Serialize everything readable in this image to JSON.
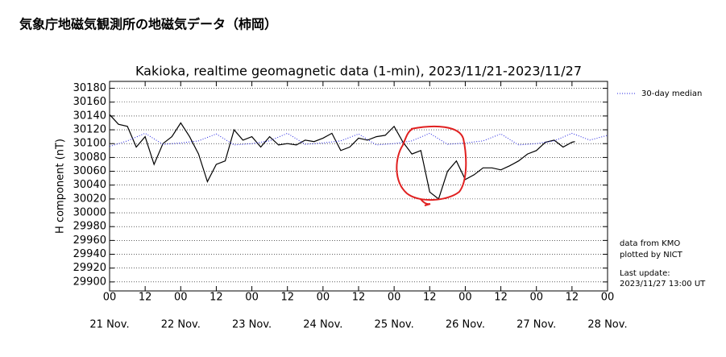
{
  "header": {
    "title": "気象庁地磁気観測所の地磁気データ（柿岡）"
  },
  "chart_data": {
    "type": "line",
    "title": "Kakioka, realtime geomagnetic data (1-min), 2023/11/21-2023/11/27",
    "y_label": "H component (nT)",
    "xlim": [
      0,
      168
    ],
    "xticks": [
      {
        "value": 0,
        "label": "00"
      },
      12,
      {
        "value": 24,
        "label": "00"
      },
      12,
      {
        "value": 48,
        "label": "00"
      },
      12,
      {
        "value": 72,
        "label": "00"
      },
      12,
      {
        "value": 96,
        "label": "00"
      },
      12,
      {
        "value": 120,
        "label": "00"
      },
      12,
      {
        "value": 144,
        "label": "00"
      },
      12,
      {
        "value": 168,
        "label": "00"
      }
    ],
    "day_labels": [
      {
        "value": 0,
        "label": "21 Nov."
      },
      {
        "value": 24,
        "label": "22 Nov."
      },
      {
        "value": 48,
        "label": "23 Nov."
      },
      {
        "value": 72,
        "label": "24 Nov."
      },
      {
        "value": 96,
        "label": "25 Nov."
      },
      {
        "value": 120,
        "label": "26 Nov."
      },
      {
        "value": 144,
        "label": "27 Nov."
      },
      {
        "value": 168,
        "label": "28 Nov."
      }
    ],
    "ylim": [
      29887,
      30190
    ],
    "yticks": [
      29900,
      29920,
      29940,
      29960,
      29980,
      30000,
      30020,
      30040,
      30060,
      30080,
      30100,
      30120,
      30140,
      30160,
      30180
    ],
    "grid": true,
    "series": [
      {
        "color": "#000000",
        "style": "solid",
        "x": [
          0,
          3,
          6,
          9,
          12,
          15,
          18,
          21,
          24,
          27,
          30,
          33,
          36,
          39,
          42,
          45,
          48,
          51,
          54,
          57,
          60,
          63,
          66,
          69,
          72,
          75,
          78,
          81,
          84,
          87,
          90,
          93,
          96,
          99,
          102,
          105,
          108,
          111,
          114,
          117,
          120,
          123,
          126,
          129,
          132,
          135,
          138,
          141,
          144,
          147,
          150,
          153,
          156,
          157
        ],
        "values": [
          30142,
          30128,
          30125,
          30095,
          30110,
          30070,
          30100,
          30110,
          30130,
          30110,
          30085,
          30045,
          30070,
          30075,
          30120,
          30105,
          30110,
          30095,
          30110,
          30098,
          30100,
          30098,
          30105,
          30103,
          30108,
          30115,
          30090,
          30095,
          30108,
          30105,
          30110,
          30112,
          30125,
          30102,
          30085,
          30090,
          30030,
          30020,
          30060,
          30075,
          30048,
          30055,
          30065,
          30065,
          30062,
          30068,
          30075,
          30085,
          30090,
          30102,
          30105,
          30095,
          30102,
          30103
        ]
      },
      {
        "name": "30-day median",
        "color": "#2020e0",
        "style": "dotted",
        "x": [
          0,
          6,
          12,
          18,
          24,
          30,
          36,
          42,
          48,
          54,
          60,
          66,
          72,
          78,
          84,
          90,
          96,
          102,
          108,
          114,
          120,
          126,
          132,
          138,
          144,
          150,
          156,
          162,
          168
        ],
        "values": [
          30096,
          30104,
          30115,
          30099,
          30101,
          30104,
          30114,
          30098,
          30100,
          30104,
          30115,
          30099,
          30101,
          30104,
          30114,
          30098,
          30100,
          30104,
          30115,
          30099,
          30101,
          30104,
          30114,
          30098,
          30100,
          30104,
          30115,
          30105,
          30112
        ]
      }
    ],
    "notes": [
      "data from KMO",
      "plotted by NICT",
      "Last update:",
      "2023/11/27 13:00 UT"
    ]
  }
}
